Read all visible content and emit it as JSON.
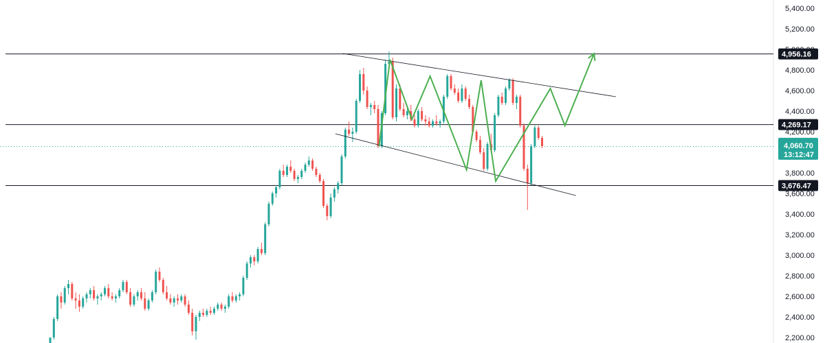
{
  "chart_data": {
    "type": "candlestick",
    "title": "",
    "xlabel": "",
    "ylabel": "",
    "ylim": [
      2120,
      5480
    ],
    "y_ticks": [
      "2,200.00",
      "2,400.00",
      "2,600.00",
      "2,800.00",
      "3,000.00",
      "3,200.00",
      "3,400.00",
      "3,600.00",
      "3,800.00",
      "4,000.00",
      "4,200.00",
      "4,400.00",
      "4,600.00",
      "4,800.00",
      "5,000.00",
      "5,200.00",
      "5,400.00"
    ],
    "y_tick_values": [
      2200,
      2400,
      2600,
      2800,
      3000,
      3200,
      3400,
      3600,
      3800,
      4000,
      4200,
      4400,
      4600,
      4800,
      5000,
      5200,
      5400
    ],
    "horizontal_levels": [
      {
        "value": 4956.16,
        "label": "4,956.16"
      },
      {
        "value": 4269.17,
        "label": "4,269.17"
      },
      {
        "value": 3676.47,
        "label": "3,676.47"
      }
    ],
    "current_price": {
      "value": 4060.7,
      "label": "4,060.70",
      "countdown": "13:12:47"
    },
    "colors": {
      "up": "#26a69a",
      "down": "#ef5350",
      "pattern": "#4caf50",
      "level": "#131722",
      "current": "#26a69a"
    },
    "grid": false,
    "candles": [
      [
        2120,
        2200,
        2100,
        2200
      ],
      [
        2200,
        2400,
        2180,
        2380
      ],
      [
        2380,
        2620,
        2360,
        2600
      ],
      [
        2600,
        2640,
        2480,
        2540
      ],
      [
        2540,
        2700,
        2520,
        2680
      ],
      [
        2680,
        2760,
        2620,
        2720
      ],
      [
        2720,
        2740,
        2560,
        2580
      ],
      [
        2580,
        2640,
        2480,
        2560
      ],
      [
        2560,
        2620,
        2450,
        2500
      ],
      [
        2500,
        2600,
        2480,
        2580
      ],
      [
        2580,
        2640,
        2540,
        2620
      ],
      [
        2620,
        2680,
        2580,
        2660
      ],
      [
        2660,
        2700,
        2560,
        2580
      ],
      [
        2580,
        2620,
        2520,
        2600
      ],
      [
        2600,
        2640,
        2560,
        2620
      ],
      [
        2620,
        2700,
        2600,
        2680
      ],
      [
        2680,
        2720,
        2580,
        2600
      ],
      [
        2600,
        2640,
        2560,
        2580
      ],
      [
        2580,
        2620,
        2540,
        2600
      ],
      [
        2600,
        2680,
        2580,
        2660
      ],
      [
        2660,
        2760,
        2640,
        2740
      ],
      [
        2740,
        2760,
        2620,
        2640
      ],
      [
        2640,
        2680,
        2500,
        2520
      ],
      [
        2520,
        2620,
        2500,
        2600
      ],
      [
        2600,
        2660,
        2560,
        2640
      ],
      [
        2640,
        2680,
        2560,
        2580
      ],
      [
        2580,
        2640,
        2460,
        2480
      ],
      [
        2480,
        2580,
        2460,
        2560
      ],
      [
        2560,
        2660,
        2540,
        2640
      ],
      [
        2640,
        2860,
        2620,
        2840
      ],
      [
        2840,
        2880,
        2740,
        2760
      ],
      [
        2760,
        2780,
        2620,
        2640
      ],
      [
        2640,
        2700,
        2560,
        2580
      ],
      [
        2580,
        2620,
        2520,
        2540
      ],
      [
        2540,
        2600,
        2500,
        2580
      ],
      [
        2580,
        2620,
        2520,
        2560
      ],
      [
        2560,
        2620,
        2540,
        2600
      ],
      [
        2600,
        2620,
        2500,
        2520
      ],
      [
        2520,
        2560,
        2420,
        2440
      ],
      [
        2440,
        2480,
        2220,
        2260
      ],
      [
        2260,
        2420,
        2180,
        2400
      ],
      [
        2400,
        2460,
        2360,
        2440
      ],
      [
        2440,
        2480,
        2400,
        2420
      ],
      [
        2420,
        2480,
        2400,
        2460
      ],
      [
        2460,
        2500,
        2420,
        2440
      ],
      [
        2440,
        2500,
        2420,
        2480
      ],
      [
        2480,
        2540,
        2460,
        2520
      ],
      [
        2520,
        2540,
        2460,
        2480
      ],
      [
        2480,
        2520,
        2440,
        2500
      ],
      [
        2500,
        2620,
        2480,
        2600
      ],
      [
        2600,
        2640,
        2540,
        2560
      ],
      [
        2560,
        2620,
        2540,
        2600
      ],
      [
        2600,
        2640,
        2560,
        2620
      ],
      [
        2620,
        2800,
        2600,
        2780
      ],
      [
        2780,
        2940,
        2760,
        2920
      ],
      [
        2920,
        3000,
        2880,
        2980
      ],
      [
        2980,
        3000,
        2900,
        2940
      ],
      [
        2940,
        3080,
        2920,
        3060
      ],
      [
        3060,
        3120,
        3000,
        3020
      ],
      [
        3020,
        3320,
        3000,
        3300
      ],
      [
        3300,
        3520,
        3280,
        3500
      ],
      [
        3500,
        3620,
        3480,
        3600
      ],
      [
        3600,
        3680,
        3560,
        3660
      ],
      [
        3660,
        3840,
        3640,
        3820
      ],
      [
        3820,
        3880,
        3760,
        3780
      ],
      [
        3780,
        3880,
        3760,
        3860
      ],
      [
        3860,
        3920,
        3800,
        3820
      ],
      [
        3820,
        3840,
        3720,
        3740
      ],
      [
        3740,
        3780,
        3700,
        3760
      ],
      [
        3760,
        3840,
        3740,
        3820
      ],
      [
        3820,
        3900,
        3800,
        3880
      ],
      [
        3880,
        3960,
        3860,
        3920
      ],
      [
        3920,
        3940,
        3820,
        3840
      ],
      [
        3840,
        3860,
        3760,
        3780
      ],
      [
        3780,
        3800,
        3700,
        3720
      ],
      [
        3720,
        3740,
        3460,
        3480
      ],
      [
        3480,
        3500,
        3340,
        3380
      ],
      [
        3380,
        3600,
        3360,
        3560
      ],
      [
        3560,
        3660,
        3520,
        3640
      ],
      [
        3640,
        3720,
        3600,
        3700
      ],
      [
        3700,
        3980,
        3680,
        3960
      ],
      [
        3960,
        4240,
        3940,
        4220
      ],
      [
        4220,
        4300,
        4160,
        4180
      ],
      [
        4180,
        4240,
        4100,
        4200
      ],
      [
        4200,
        4520,
        4180,
        4500
      ],
      [
        4500,
        4800,
        4480,
        4760
      ],
      [
        4760,
        4820,
        4560,
        4600
      ],
      [
        4600,
        4640,
        4420,
        4440
      ],
      [
        4440,
        4480,
        4360,
        4460
      ],
      [
        4460,
        4500,
        4380,
        4420
      ],
      [
        4420,
        4460,
        4040,
        4060
      ],
      [
        4060,
        4400,
        4040,
        4380
      ],
      [
        4380,
        4900,
        4360,
        4860
      ],
      [
        4860,
        4980,
        4820,
        4880
      ],
      [
        4880,
        4920,
        4320,
        4340
      ],
      [
        4340,
        4660,
        4300,
        4620
      ],
      [
        4620,
        4660,
        4400,
        4420
      ],
      [
        4420,
        4480,
        4340,
        4360
      ],
      [
        4360,
        4440,
        4320,
        4400
      ],
      [
        4400,
        4460,
        4300,
        4320
      ],
      [
        4320,
        4360,
        4240,
        4260
      ],
      [
        4260,
        4420,
        4240,
        4400
      ],
      [
        4400,
        4440,
        4300,
        4320
      ],
      [
        4320,
        4360,
        4260,
        4300
      ],
      [
        4300,
        4340,
        4240,
        4260
      ],
      [
        4260,
        4320,
        4240,
        4300
      ],
      [
        4300,
        4360,
        4260,
        4280
      ],
      [
        4280,
        4320,
        4240,
        4300
      ],
      [
        4300,
        4560,
        4280,
        4540
      ],
      [
        4540,
        4760,
        4520,
        4740
      ],
      [
        4740,
        4760,
        4600,
        4620
      ],
      [
        4620,
        4660,
        4560,
        4580
      ],
      [
        4580,
        4620,
        4480,
        4500
      ],
      [
        4500,
        4660,
        4480,
        4620
      ],
      [
        4620,
        4640,
        4500,
        4520
      ],
      [
        4520,
        4560,
        4420,
        4440
      ],
      [
        4440,
        4460,
        4180,
        4200
      ],
      [
        4200,
        4220,
        4100,
        4120
      ],
      [
        4120,
        4160,
        3980,
        4000
      ],
      [
        4000,
        4040,
        3820,
        3840
      ],
      [
        3840,
        4100,
        3820,
        4080
      ],
      [
        4080,
        4180,
        4000,
        4020
      ],
      [
        4020,
        4380,
        4000,
        4360
      ],
      [
        4360,
        4560,
        4340,
        4540
      ],
      [
        4540,
        4580,
        4460,
        4480
      ],
      [
        4480,
        4640,
        4460,
        4620
      ],
      [
        4620,
        4720,
        4600,
        4700
      ],
      [
        4700,
        4720,
        4460,
        4480
      ],
      [
        4480,
        4560,
        4420,
        4540
      ],
      [
        4540,
        4560,
        4240,
        4260
      ],
      [
        4260,
        4280,
        3820,
        3840
      ],
      [
        3840,
        3880,
        3440,
        3700
      ],
      [
        3700,
        4080,
        3680,
        4060
      ],
      [
        4060,
        4260,
        4040,
        4240
      ],
      [
        4240,
        4260,
        4120,
        4140
      ],
      [
        4140,
        4160,
        4040,
        4060
      ]
    ],
    "trend_lines": [
      {
        "from": [
          18,
          4960
        ],
        "to": [
          93,
          4540
        ]
      },
      {
        "from": [
          16,
          4180
        ],
        "to": [
          82,
          3580
        ]
      }
    ],
    "zigzag": [
      [
        28,
        4060
      ],
      [
        31,
        4900
      ],
      [
        37,
        4320
      ],
      [
        42,
        4740
      ],
      [
        52,
        3830
      ],
      [
        56,
        4700
      ],
      [
        60,
        3720
      ],
      [
        75,
        4620
      ],
      [
        79,
        4260
      ],
      [
        87,
        4960
      ]
    ]
  }
}
